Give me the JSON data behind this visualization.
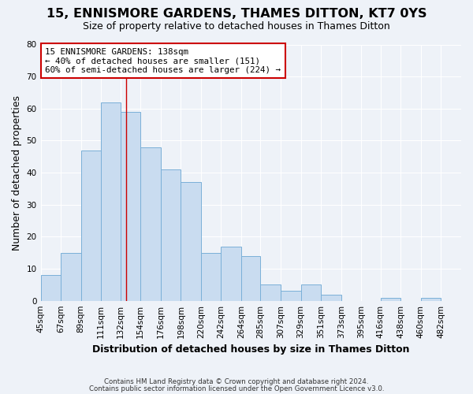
{
  "title": "15, ENNISMORE GARDENS, THAMES DITTON, KT7 0YS",
  "subtitle": "Size of property relative to detached houses in Thames Ditton",
  "xlabel": "Distribution of detached houses by size in Thames Ditton",
  "ylabel": "Number of detached properties",
  "footer1": "Contains HM Land Registry data © Crown copyright and database right 2024.",
  "footer2": "Contains public sector information licensed under the Open Government Licence v3.0.",
  "bar_labels": [
    "45sqm",
    "67sqm",
    "89sqm",
    "111sqm",
    "132sqm",
    "154sqm",
    "176sqm",
    "198sqm",
    "220sqm",
    "242sqm",
    "264sqm",
    "285sqm",
    "307sqm",
    "329sqm",
    "351sqm",
    "373sqm",
    "395sqm",
    "416sqm",
    "438sqm",
    "460sqm",
    "482sqm"
  ],
  "bar_values": [
    8,
    15,
    47,
    62,
    59,
    48,
    41,
    37,
    15,
    17,
    14,
    5,
    3,
    5,
    2,
    0,
    0,
    1,
    0,
    1,
    0
  ],
  "bar_color": "#c9dcf0",
  "bar_edge_color": "#7ab0d8",
  "bin_edges": [
    45,
    67,
    89,
    111,
    132,
    154,
    176,
    198,
    220,
    242,
    264,
    285,
    307,
    329,
    351,
    373,
    395,
    416,
    438,
    460,
    482,
    504
  ],
  "annotation_title": "15 ENNISMORE GARDENS: 138sqm",
  "annotation_line1": "← 40% of detached houses are smaller (151)",
  "annotation_line2": "60% of semi-detached houses are larger (224) →",
  "annotation_box_color": "#ffffff",
  "annotation_box_edge": "#cc0000",
  "vline_color": "#cc0000",
  "vline_x": 138,
  "ylim": [
    0,
    80
  ],
  "yticks": [
    0,
    10,
    20,
    30,
    40,
    50,
    60,
    70,
    80
  ],
  "bg_color": "#eef2f8",
  "plot_bg_color": "#eef2f8",
  "grid_color": "#ffffff",
  "title_fontsize": 11.5,
  "subtitle_fontsize": 9,
  "axis_label_fontsize": 9,
  "tick_fontsize": 7.5,
  "annotation_fontsize": 7.8,
  "footer_fontsize": 6.2
}
